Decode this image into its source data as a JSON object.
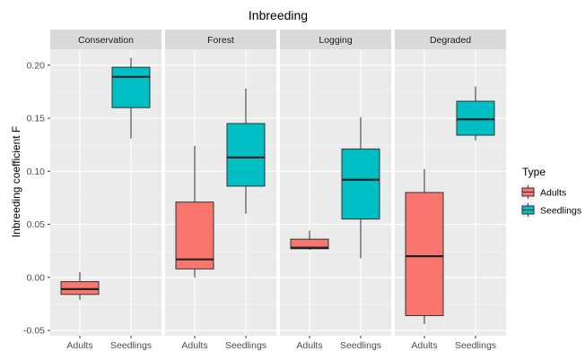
{
  "chart_data": {
    "type": "boxplot",
    "title": "Inbreeding",
    "ylabel": "Inbreeding coefficient F",
    "xlabel": "",
    "ylim": [
      -0.055,
      0.215
    ],
    "yticks": [
      -0.05,
      0.0,
      0.05,
      0.1,
      0.15,
      0.2
    ],
    "ytick_labels": [
      "-0.05",
      "0.00",
      "0.05",
      "0.10",
      "0.15",
      "0.20"
    ],
    "grid": true,
    "legend": {
      "title": "Type",
      "position": "right",
      "entries": [
        {
          "label": "Adults",
          "color": "#f8766d"
        },
        {
          "label": "Seedlings",
          "color": "#00bfc4"
        }
      ]
    },
    "categories": [
      "Adults",
      "Seedlings"
    ],
    "panels": [
      {
        "name": "Conservation",
        "boxes": [
          {
            "type": "Adults",
            "min": -0.021,
            "q1": -0.016,
            "median": -0.011,
            "q3": -0.004,
            "max": 0.005
          },
          {
            "type": "Seedlings",
            "min": 0.131,
            "q1": 0.16,
            "median": 0.189,
            "q3": 0.198,
            "max": 0.207
          }
        ]
      },
      {
        "name": "Forest",
        "boxes": [
          {
            "type": "Adults",
            "min": 0.0,
            "q1": 0.008,
            "median": 0.017,
            "q3": 0.071,
            "max": 0.124
          },
          {
            "type": "Seedlings",
            "min": 0.06,
            "q1": 0.086,
            "median": 0.113,
            "q3": 0.145,
            "max": 0.178
          }
        ]
      },
      {
        "name": "Logging",
        "boxes": [
          {
            "type": "Adults",
            "min": 0.026,
            "q1": 0.027,
            "median": 0.028,
            "q3": 0.036,
            "max": 0.044
          },
          {
            "type": "Seedlings",
            "min": 0.018,
            "q1": 0.055,
            "median": 0.092,
            "q3": 0.121,
            "max": 0.151
          }
        ]
      },
      {
        "name": "Degraded",
        "boxes": [
          {
            "type": "Adults",
            "min": -0.044,
            "q1": -0.036,
            "median": 0.02,
            "q3": 0.08,
            "max": 0.102
          },
          {
            "type": "Seedlings",
            "min": 0.129,
            "q1": 0.134,
            "median": 0.149,
            "q3": 0.166,
            "max": 0.18
          }
        ]
      }
    ]
  }
}
